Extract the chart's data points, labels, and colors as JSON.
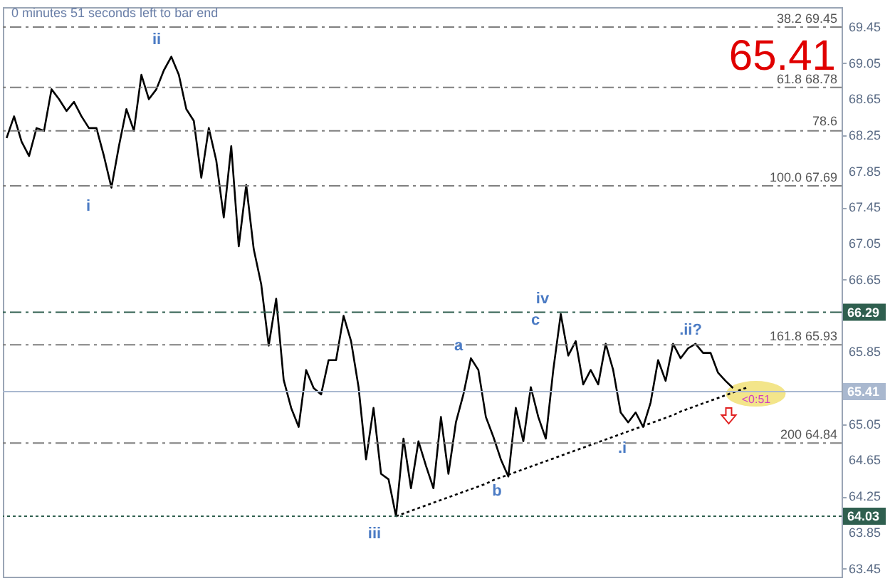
{
  "chart_data": {
    "type": "line",
    "categories": [
      null,
      null,
      null,
      null,
      null,
      null,
      null,
      null,
      null,
      null,
      null,
      null,
      null,
      null,
      null,
      null,
      null,
      null,
      null,
      null,
      null,
      null,
      null,
      null,
      null,
      null,
      null,
      null,
      null,
      null,
      null,
      null,
      null,
      null,
      null,
      null,
      null,
      null,
      null,
      null,
      null,
      null,
      null,
      null,
      null,
      null,
      null,
      null,
      null,
      null,
      null,
      null,
      null,
      null,
      null,
      null,
      null,
      null,
      null,
      null,
      null,
      null,
      null,
      null,
      null,
      null,
      null,
      null,
      null,
      null,
      null,
      null,
      null,
      null,
      null,
      null,
      null,
      null,
      null,
      null,
      null,
      null,
      null,
      null,
      null,
      null,
      null,
      null,
      null,
      null,
      null,
      null,
      null,
      null,
      null,
      null,
      null,
      null,
      null,
      null,
      null,
      null,
      null,
      null,
      null,
      null,
      null,
      null,
      null,
      null,
      null,
      null
    ],
    "ylim": [
      63.36,
      69.67
    ],
    "yticks": [
      69.45,
      69.05,
      68.65,
      68.25,
      67.85,
      67.45,
      67.05,
      66.65,
      65.85,
      65.05,
      64.65,
      64.25,
      63.85,
      63.45
    ],
    "tick_labels": "y",
    "marker": "none",
    "series": [
      {
        "color": "#000000",
        "values": [
          68.22,
          68.46,
          68.18,
          68.02,
          68.33,
          68.3,
          68.76,
          68.65,
          68.52,
          68.62,
          68.46,
          68.33,
          68.33,
          68.02,
          67.67,
          68.13,
          68.54,
          68.3,
          68.92,
          68.65,
          68.76,
          68.97,
          69.12,
          68.92,
          68.54,
          68.41,
          67.78,
          68.33,
          67.97,
          67.34,
          68.13,
          67.02,
          67.7,
          66.99,
          66.6,
          65.92,
          66.44,
          65.54,
          65.23,
          65.02,
          65.65,
          65.45,
          65.38,
          65.76,
          65.76,
          66.25,
          65.97,
          65.46,
          64.66,
          65.23,
          64.5,
          64.44,
          64.03,
          64.89,
          64.34,
          64.86,
          64.59,
          64.34,
          65.13,
          64.5,
          65.07,
          65.38,
          65.78,
          65.65,
          65.13,
          64.91,
          64.66,
          64.47,
          65.23,
          64.86,
          65.46,
          65.13,
          64.89,
          65.65,
          66.27,
          65.81,
          65.97,
          65.49,
          65.65,
          65.49,
          65.94,
          65.65,
          65.18,
          65.07,
          65.18,
          65.02,
          65.29,
          65.76,
          65.53,
          65.94,
          65.78,
          65.89,
          65.94,
          65.84,
          65.84,
          65.62,
          65.53,
          65.45,
          null,
          null,
          null,
          null,
          null,
          null,
          null,
          null,
          null,
          null,
          null,
          null,
          null,
          null
        ]
      },
      {
        "color": "#000000",
        "line_style": "dotted",
        "values": [
          null,
          null,
          null,
          null,
          null,
          null,
          null,
          null,
          null,
          null,
          null,
          null,
          null,
          null,
          null,
          null,
          null,
          null,
          null,
          null,
          null,
          null,
          null,
          null,
          null,
          null,
          null,
          null,
          null,
          null,
          null,
          null,
          null,
          null,
          null,
          null,
          null,
          null,
          null,
          null,
          null,
          null,
          null,
          null,
          null,
          null,
          null,
          null,
          null,
          null,
          null,
          null,
          64.03,
          64.06,
          64.09,
          64.12,
          64.15,
          64.18,
          64.21,
          64.24,
          64.27,
          64.3,
          64.33,
          64.36,
          64.39,
          64.43,
          64.46,
          64.49,
          64.52,
          64.55,
          64.58,
          64.61,
          64.64,
          64.67,
          64.7,
          64.73,
          64.76,
          64.79,
          64.82,
          64.85,
          64.88,
          64.91,
          64.94,
          64.97,
          65.0,
          65.03,
          65.06,
          65.09,
          65.12,
          65.15,
          65.19,
          65.22,
          65.25,
          65.28,
          65.31,
          65.34,
          65.37,
          65.4,
          65.43,
          65.46,
          null,
          null,
          null,
          null,
          null,
          null,
          null,
          null,
          null,
          null,
          null,
          null
        ]
      }
    ],
    "ref_lines": [
      {
        "axis": "y",
        "value": 69.45,
        "label": "38.2 69.45",
        "color": "#7f7f7f",
        "line_style": "dashed"
      },
      {
        "axis": "y",
        "value": 68.78,
        "label": "61.8 68.78",
        "color": "#7f7f7f",
        "line_style": "dashed"
      },
      {
        "axis": "y",
        "value": 68.3,
        "color": "#7f7f7f",
        "line_style": "dashed"
      },
      {
        "axis": "y",
        "value": 67.69,
        "label": "100.0 67.69",
        "color": "#7f7f7f",
        "line_style": "dashed"
      },
      {
        "axis": "y",
        "value": 66.29,
        "label": "66.29",
        "color": "#2f5f4f",
        "line_style": "dashed"
      },
      {
        "axis": "y",
        "value": 65.93,
        "label": "161.8 65.93",
        "color": "#7f7f7f",
        "line_style": "dashed"
      },
      {
        "axis": "y",
        "value": 65.41,
        "label": "65.41",
        "color": "#a9b8cf",
        "line_style": "solid"
      },
      {
        "axis": "y",
        "value": 64.84,
        "label": "200 64.84",
        "color": "#7f7f7f",
        "line_style": "dashed"
      },
      {
        "axis": "y",
        "value": 64.03,
        "label": "64.03",
        "color": "#2f5f4f",
        "line_style": "dotted"
      }
    ],
    "annotations": [
      "0 minutes 51 seconds left to bar end",
      "65.41",
      "i",
      "ii",
      "iii",
      "iv",
      "c",
      "a",
      "b",
      ".i",
      ".ii?",
      "<0:51",
      "78.6"
    ]
  }
}
